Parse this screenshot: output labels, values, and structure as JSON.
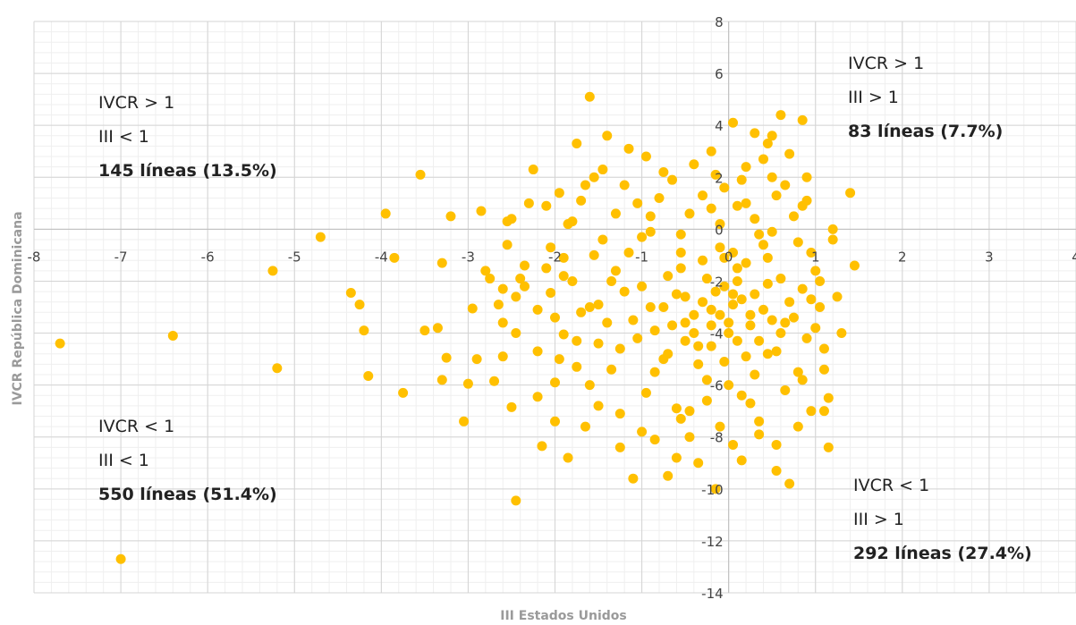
{
  "chart_data": {
    "type": "scatter",
    "xlabel": "III Estados Unidos",
    "ylabel": "IVCR República Dominicana",
    "xlim": [
      -8,
      4
    ],
    "ylim": [
      -14,
      8
    ],
    "x_ticks": [
      -8,
      -7,
      -6,
      -5,
      -4,
      -3,
      -2,
      -1,
      0,
      1,
      2,
      3,
      4
    ],
    "y_ticks": [
      8,
      6,
      4,
      2,
      0,
      -2,
      -4,
      -6,
      -8,
      -10,
      -12,
      -14
    ],
    "grid": true,
    "point_color": "#FFC000",
    "points": [
      [
        -7.7,
        -4.4
      ],
      [
        -7.0,
        -12.7
      ],
      [
        -6.4,
        -4.1
      ],
      [
        -5.25,
        -1.6
      ],
      [
        -5.2,
        -5.35
      ],
      [
        -4.7,
        -0.3
      ],
      [
        -4.35,
        -2.45
      ],
      [
        -4.25,
        -2.9
      ],
      [
        -4.2,
        -3.9
      ],
      [
        -4.15,
        -5.65
      ],
      [
        -3.95,
        0.6
      ],
      [
        -3.85,
        -1.1
      ],
      [
        -3.75,
        -6.3
      ],
      [
        -3.55,
        2.1
      ],
      [
        -3.35,
        -3.8
      ],
      [
        -3.3,
        -1.3
      ],
      [
        -3.25,
        -4.95
      ],
      [
        -3.2,
        0.5
      ],
      [
        -3.05,
        -7.4
      ],
      [
        -3.0,
        -5.95
      ],
      [
        -2.95,
        -3.05
      ],
      [
        -2.9,
        -5.0
      ],
      [
        -2.85,
        0.7
      ],
      [
        -2.75,
        -1.9
      ],
      [
        -2.7,
        -5.85
      ],
      [
        -2.6,
        -4.9
      ],
      [
        -2.6,
        -2.3
      ],
      [
        -2.6,
        -3.6
      ],
      [
        -2.55,
        0.3
      ],
      [
        -2.55,
        -0.6
      ],
      [
        -2.5,
        -6.85
      ],
      [
        -2.45,
        -2.6
      ],
      [
        -2.45,
        -4.0
      ],
      [
        -2.35,
        -1.4
      ],
      [
        -2.35,
        -2.2
      ],
      [
        -2.3,
        1.0
      ],
      [
        -2.2,
        -6.45
      ],
      [
        -2.45,
        -10.45
      ],
      [
        -2.15,
        -8.35
      ],
      [
        -2.1,
        -1.5
      ],
      [
        -2.05,
        -2.45
      ],
      [
        -2.05,
        -0.7
      ],
      [
        -2.0,
        -3.4
      ],
      [
        -2.0,
        -5.9
      ],
      [
        -1.95,
        1.4
      ],
      [
        -1.9,
        -4.05
      ],
      [
        -1.9,
        -1.1
      ],
      [
        -1.85,
        -8.8
      ],
      [
        -1.8,
        -2.0
      ],
      [
        -1.8,
        0.3
      ],
      [
        -1.75,
        -5.3
      ],
      [
        -1.7,
        -3.2
      ],
      [
        -1.65,
        1.7
      ],
      [
        -1.6,
        -6.0
      ],
      [
        -1.55,
        -1.0
      ],
      [
        -1.5,
        -2.9
      ],
      [
        -1.5,
        -4.4
      ],
      [
        -1.45,
        2.3
      ],
      [
        -1.4,
        -3.6
      ],
      [
        -1.35,
        -5.4
      ],
      [
        -1.3,
        -1.6
      ],
      [
        -1.3,
        0.6
      ],
      [
        -1.25,
        -7.1
      ],
      [
        -1.2,
        -2.4
      ],
      [
        -1.15,
        3.1
      ],
      [
        -1.1,
        -9.6
      ],
      [
        -1.05,
        -4.2
      ],
      [
        -1.0,
        -0.3
      ],
      [
        -0.95,
        -6.3
      ],
      [
        -0.9,
        -3.0
      ],
      [
        -0.85,
        -8.1
      ],
      [
        -0.8,
        1.2
      ],
      [
        -0.75,
        -5.0
      ],
      [
        -0.7,
        -1.8
      ],
      [
        -0.65,
        -3.7
      ],
      [
        -0.6,
        -8.8
      ],
      [
        -0.55,
        -0.9
      ],
      [
        -0.5,
        -2.6
      ],
      [
        -0.45,
        -7.0
      ],
      [
        -0.4,
        2.5
      ],
      [
        -0.35,
        -4.5
      ],
      [
        -0.3,
        -1.2
      ],
      [
        -0.25,
        -5.8
      ],
      [
        -0.2,
        -3.1
      ],
      [
        -0.15,
        -10.0
      ],
      [
        -0.1,
        0.2
      ],
      [
        -0.05,
        -2.2
      ],
      [
        0.0,
        -4.0
      ],
      [
        0.05,
        -8.3
      ],
      [
        0.1,
        -1.5
      ],
      [
        0.15,
        -6.4
      ],
      [
        0.2,
        1.0
      ],
      [
        0.25,
        -3.3
      ],
      [
        0.3,
        -2.5
      ],
      [
        0.35,
        -7.4
      ],
      [
        0.4,
        -0.6
      ],
      [
        0.45,
        -4.8
      ],
      [
        0.5,
        2.0
      ],
      [
        0.55,
        -9.3
      ],
      [
        0.6,
        -1.9
      ],
      [
        0.65,
        -3.6
      ],
      [
        0.7,
        -9.8
      ],
      [
        0.75,
        0.5
      ],
      [
        0.8,
        -5.5
      ],
      [
        0.85,
        -2.3
      ],
      [
        0.9,
        -4.2
      ],
      [
        0.95,
        -7.0
      ],
      [
        1.0,
        -1.6
      ],
      [
        1.05,
        -3.0
      ],
      [
        1.1,
        -5.4
      ],
      [
        1.15,
        -8.4
      ],
      [
        1.2,
        -0.4
      ],
      [
        1.25,
        -2.6
      ],
      [
        1.3,
        -4.0
      ],
      [
        1.4,
        1.4
      ],
      [
        1.45,
        -1.4
      ],
      [
        1.15,
        -6.5
      ],
      [
        1.2,
        0.0
      ],
      [
        -1.6,
        5.1
      ],
      [
        0.05,
        4.1
      ],
      [
        0.6,
        4.4
      ],
      [
        0.85,
        4.2
      ],
      [
        -1.75,
        3.3
      ],
      [
        -1.4,
        3.6
      ],
      [
        -0.95,
        2.8
      ],
      [
        0.3,
        3.7
      ],
      [
        0.5,
        3.6
      ],
      [
        -2.25,
        2.3
      ],
      [
        -1.55,
        2.0
      ],
      [
        -0.2,
        3.0
      ],
      [
        0.45,
        3.3
      ],
      [
        0.7,
        2.9
      ],
      [
        -0.05,
        1.6
      ],
      [
        0.2,
        2.4
      ],
      [
        -0.65,
        1.9
      ],
      [
        -2.1,
        0.9
      ],
      [
        -1.2,
        1.7
      ],
      [
        0.9,
        2.0
      ],
      [
        0.1,
        0.9
      ],
      [
        -0.45,
        0.6
      ],
      [
        0.55,
        1.3
      ],
      [
        -1.85,
        0.2
      ],
      [
        -0.9,
        -0.1
      ],
      [
        0.35,
        -0.2
      ],
      [
        -2.5,
        0.4
      ],
      [
        0.8,
        -0.5
      ],
      [
        -0.1,
        -0.7
      ],
      [
        -1.45,
        -0.4
      ],
      [
        0.15,
        -2.7
      ],
      [
        -0.1,
        -3.3
      ],
      [
        0.05,
        -2.9
      ],
      [
        -0.3,
        -2.8
      ],
      [
        0.25,
        -3.7
      ],
      [
        -0.2,
        -3.7
      ],
      [
        0.1,
        -4.3
      ],
      [
        -0.4,
        -3.3
      ],
      [
        0.4,
        -3.1
      ],
      [
        -0.6,
        -2.5
      ],
      [
        0.45,
        -2.1
      ],
      [
        -0.5,
        -4.3
      ],
      [
        0.6,
        -4.0
      ],
      [
        -0.75,
        -3.0
      ],
      [
        0.7,
        -2.8
      ],
      [
        -0.25,
        -1.9
      ],
      [
        0.2,
        -1.3
      ],
      [
        -0.05,
        -5.1
      ],
      [
        0.3,
        -5.6
      ],
      [
        -0.35,
        -5.2
      ],
      [
        -0.85,
        -3.9
      ],
      [
        0.75,
        -3.4
      ],
      [
        -1.0,
        -2.2
      ],
      [
        0.95,
        -2.7
      ],
      [
        -0.7,
        -4.8
      ],
      [
        0.55,
        -4.7
      ],
      [
        -1.1,
        -3.5
      ],
      [
        1.0,
        -3.8
      ],
      [
        -0.55,
        -1.5
      ],
      [
        0.45,
        -1.1
      ],
      [
        0.0,
        -6.0
      ],
      [
        -0.25,
        -6.6
      ],
      [
        0.25,
        -6.7
      ],
      [
        -0.6,
        -6.9
      ],
      [
        0.65,
        -6.2
      ],
      [
        -0.1,
        -7.6
      ],
      [
        0.35,
        -7.9
      ],
      [
        -0.45,
        -8.0
      ],
      [
        -0.85,
        -5.5
      ],
      [
        0.85,
        -5.8
      ],
      [
        -1.25,
        -4.6
      ],
      [
        1.1,
        -4.6
      ],
      [
        -1.35,
        -2.0
      ],
      [
        1.05,
        -2.0
      ],
      [
        -1.15,
        -0.9
      ],
      [
        0.95,
        -0.9
      ],
      [
        -1.6,
        -3.0
      ],
      [
        -1.75,
        -4.3
      ],
      [
        -2.2,
        -3.1
      ],
      [
        -2.4,
        -1.9
      ],
      [
        -1.95,
        -5.0
      ],
      [
        -1.5,
        -6.8
      ],
      [
        -1.0,
        -7.8
      ],
      [
        -0.35,
        -9.0
      ],
      [
        0.15,
        -8.9
      ],
      [
        0.55,
        -8.3
      ],
      [
        -0.7,
        -9.5
      ],
      [
        -0.2,
        0.8
      ],
      [
        0.3,
        0.4
      ],
      [
        -0.55,
        -0.2
      ],
      [
        0.5,
        -0.1
      ],
      [
        -0.9,
        0.5
      ],
      [
        0.85,
        0.9
      ],
      [
        -0.3,
        1.3
      ],
      [
        0.65,
        1.7
      ],
      [
        -1.05,
        1.0
      ],
      [
        0.15,
        1.9
      ],
      [
        -0.75,
        2.2
      ],
      [
        0.4,
        2.7
      ],
      [
        -0.15,
        2.1
      ],
      [
        0.9,
        1.1
      ],
      [
        -1.7,
        1.1
      ],
      [
        -1.9,
        -1.8
      ],
      [
        -2.65,
        -2.9
      ],
      [
        -2.8,
        -1.6
      ],
      [
        -3.5,
        -3.9
      ],
      [
        -3.3,
        -5.8
      ],
      [
        -2.2,
        -4.7
      ],
      [
        -1.65,
        -7.6
      ],
      [
        -1.25,
        -8.4
      ],
      [
        -0.55,
        -7.3
      ],
      [
        0.8,
        -7.6
      ],
      [
        1.1,
        -7.0
      ],
      [
        -2.0,
        -7.4
      ],
      [
        0.05,
        -0.9
      ],
      [
        -0.05,
        -1.1
      ],
      [
        0.1,
        -2.0
      ],
      [
        -0.15,
        -2.4
      ],
      [
        0.2,
        -4.9
      ],
      [
        -0.2,
        -4.5
      ],
      [
        0.0,
        -3.6
      ],
      [
        0.35,
        -4.3
      ],
      [
        -0.4,
        -4.0
      ],
      [
        0.5,
        -3.5
      ],
      [
        -0.5,
        -3.6
      ],
      [
        0.05,
        -2.5
      ]
    ],
    "annotations": [
      {
        "id": "top-left",
        "lines": [
          "IVCR > 1",
          "III < 1",
          "145 líneas (13.5%)"
        ]
      },
      {
        "id": "top-right",
        "lines": [
          "IVCR > 1",
          "III > 1",
          "83 líneas (7.7%)"
        ]
      },
      {
        "id": "bottom-left",
        "lines": [
          "IVCR < 1",
          "III < 1",
          "550 líneas (51.4%)"
        ]
      },
      {
        "id": "bottom-right",
        "lines": [
          "IVCR < 1",
          "III > 1",
          "292 líneas (27.4%)"
        ]
      }
    ]
  }
}
